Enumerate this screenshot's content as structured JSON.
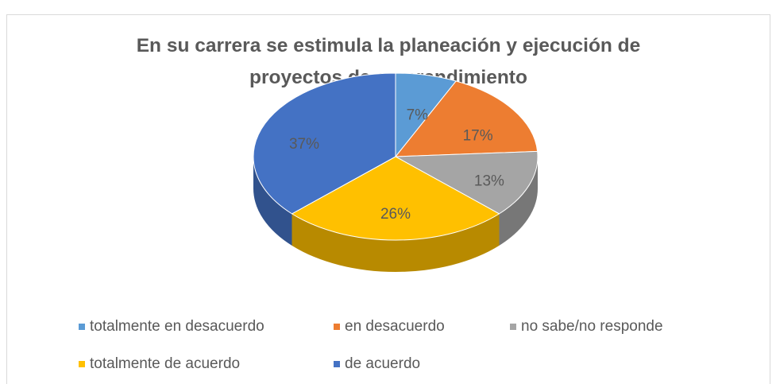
{
  "chart_data": {
    "type": "pie",
    "title": "En su carrera se estimula la planeación y ejecución de proyectos de emprendimiento",
    "categories": [
      "totalmente en desacuerdo",
      "en desacuerdo",
      "no sabe/no responde",
      "totalmente de acuerdo",
      "de acuerdo"
    ],
    "values": [
      7,
      17,
      13,
      26,
      37
    ],
    "value_labels": [
      "7%",
      "17%",
      "13%",
      "26%",
      "37%"
    ],
    "colors": [
      "#5b9bd5",
      "#ed7d31",
      "#a5a5a5",
      "#ffc000",
      "#4472c4"
    ],
    "legend": "bottom"
  }
}
